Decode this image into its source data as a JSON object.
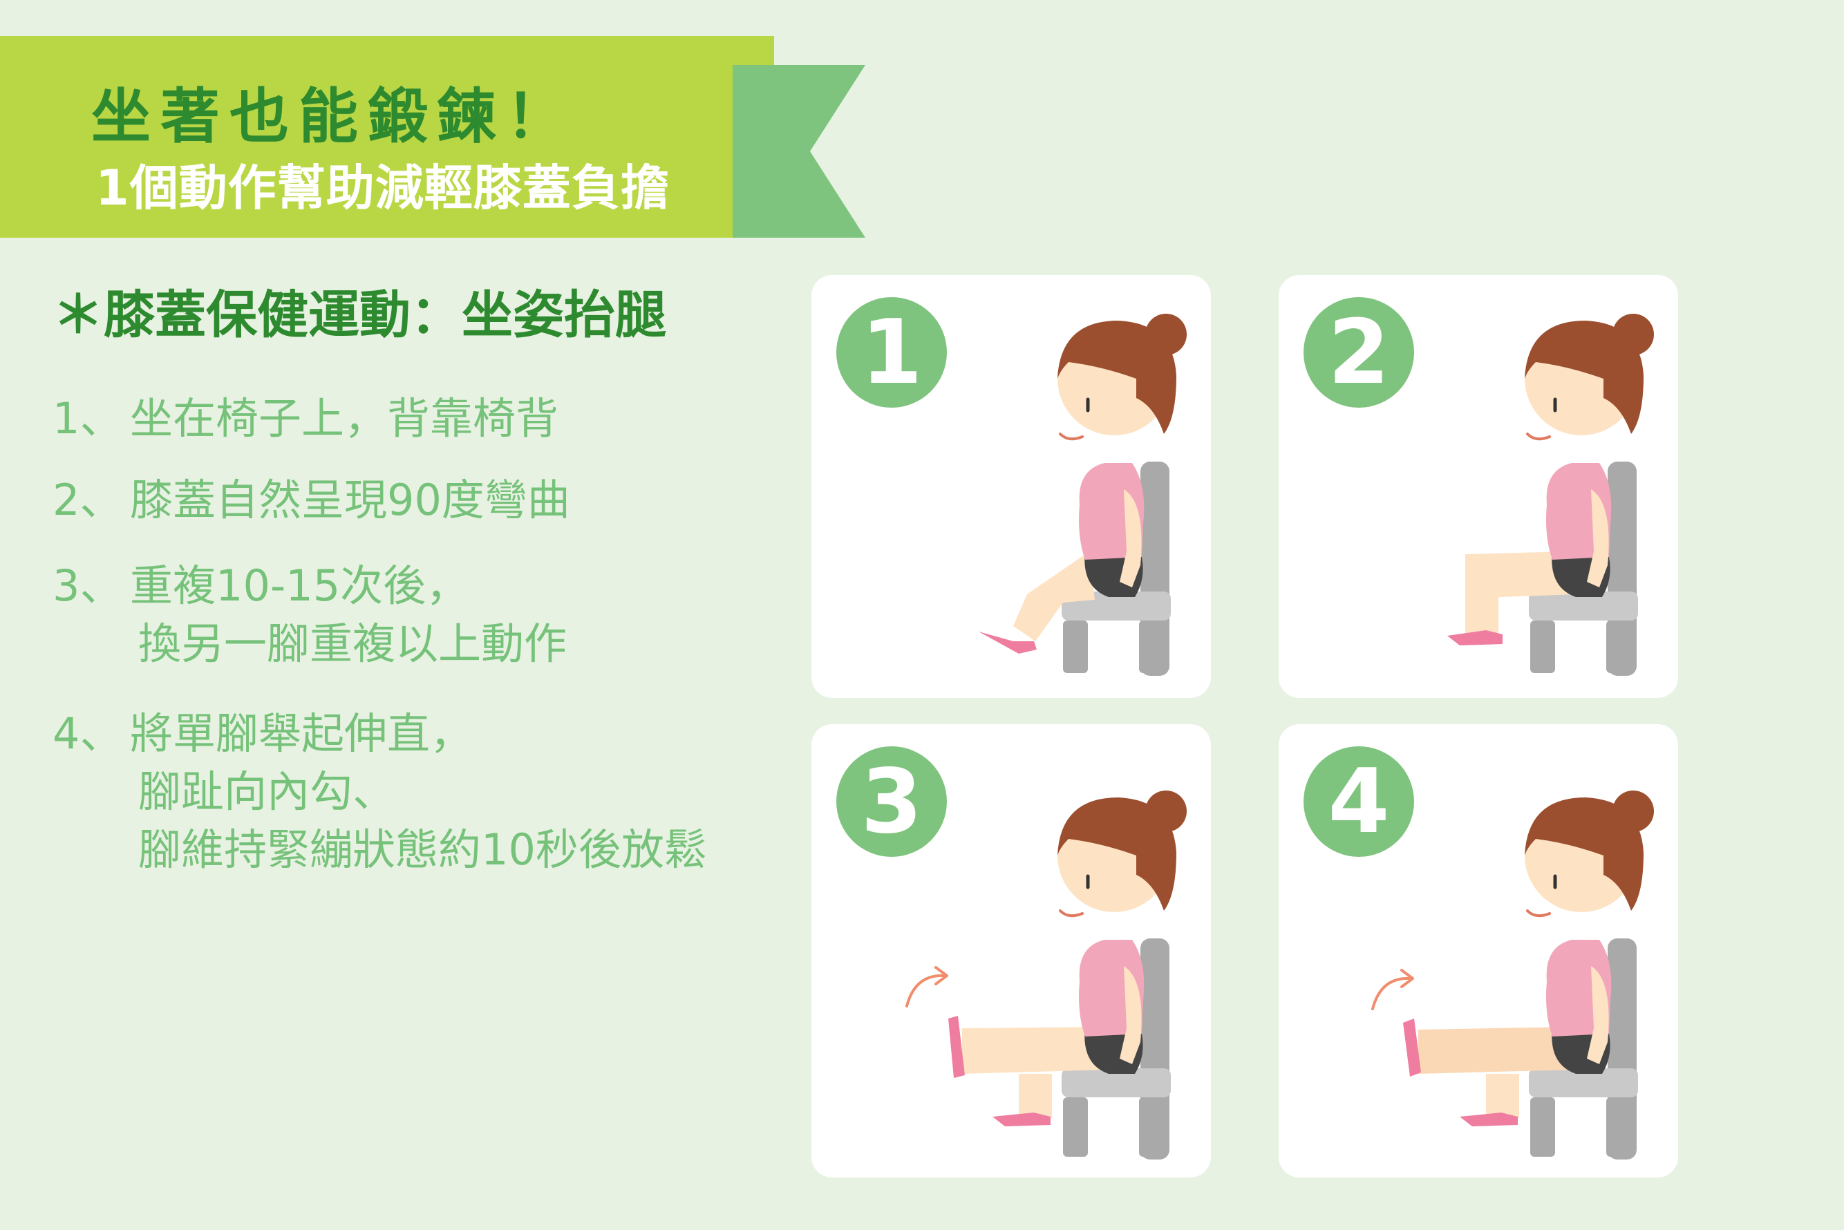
{
  "header": {
    "title": "坐著也能鍛鍊！",
    "subtitle": "1個動作幫助減輕膝蓋負擔"
  },
  "section": {
    "title": "＊膝蓋保健運動：坐姿抬腿"
  },
  "steps": [
    {
      "num": "1、",
      "lines": [
        "坐在椅子上，背靠椅背"
      ]
    },
    {
      "num": "2、",
      "lines": [
        "膝蓋自然呈現90度彎曲"
      ]
    },
    {
      "num": "3、",
      "lines": [
        "重複10-15次後，",
        "換另一腳重複以上動作"
      ]
    },
    {
      "num": "4、",
      "lines": [
        "將單腳舉起伸直，",
        "腳趾向內勾、",
        "腳維持緊繃狀態約10秒後放鬆"
      ]
    }
  ],
  "cards": [
    {
      "badge": "1"
    },
    {
      "badge": "2"
    },
    {
      "badge": "3"
    },
    {
      "badge": "4"
    }
  ],
  "colors": {
    "background": "#e8f2e3",
    "banner": "#b9d745",
    "banner_tail": "#7fc47e",
    "title_green": "#2e8a2f",
    "step_text": "#76c27a",
    "badge": "#7fc47e",
    "skin": "#fde3c4",
    "hair": "#9c4f2f",
    "shirt": "#f2a6ba",
    "shorts": "#444444",
    "shoe": "#ee7d9f",
    "chair": "#a9a9a9",
    "arrow": "#f08d6d"
  }
}
